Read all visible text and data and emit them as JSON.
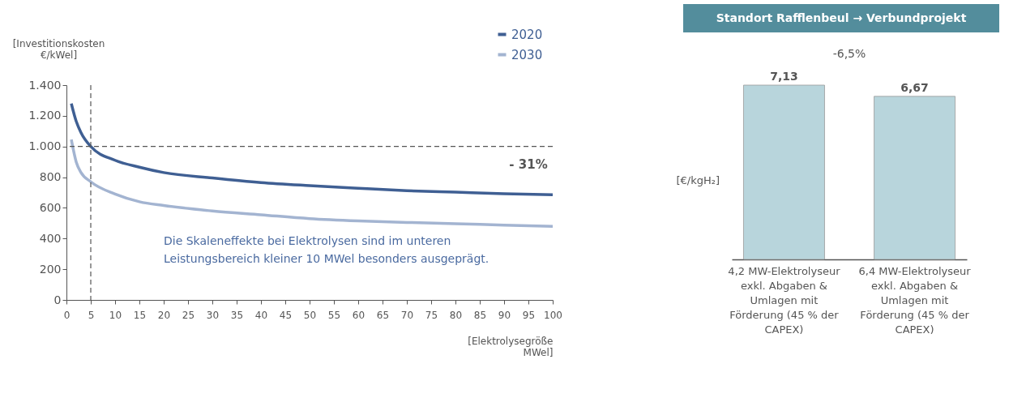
{
  "chart_data": [
    {
      "type": "line",
      "ylabel": "[Investitionskosten €/kWel]",
      "xlabel": "[Elektrolysegröße MWel]",
      "x": [
        1,
        2,
        3,
        5,
        10,
        15,
        20,
        30,
        40,
        50,
        60,
        70,
        80,
        90,
        100
      ],
      "series": [
        {
          "name": "2020",
          "color": "#3f5f93",
          "values": [
            1280,
            1165,
            1090,
            1000,
            910,
            865,
            830,
            795,
            765,
            745,
            728,
            712,
            702,
            692,
            685
          ]
        },
        {
          "name": "2030",
          "color": "#a3b4d1",
          "values": [
            1045,
            900,
            830,
            770,
            690,
            640,
            615,
            580,
            555,
            530,
            515,
            505,
            497,
            488,
            480
          ]
        }
      ],
      "xlim": [
        0,
        100
      ],
      "xticks": [
        0,
        5,
        10,
        15,
        20,
        25,
        30,
        35,
        40,
        45,
        50,
        55,
        60,
        65,
        70,
        75,
        80,
        85,
        90,
        95,
        100
      ],
      "ylim": [
        0,
        1400
      ],
      "yticks": [
        0,
        200,
        400,
        600,
        800,
        {
          "value": 1000,
          "label": "1.000"
        },
        {
          "value": 1200,
          "label": "1.200"
        },
        {
          "value": 1400,
          "label": "1.400"
        }
      ],
      "ref_lines": [
        {
          "axis": "y",
          "value": 1000,
          "line_style": "dashed",
          "color": "#555555"
        },
        {
          "axis": "x",
          "value": 5,
          "line_style": "dashed",
          "color": "#555555"
        }
      ],
      "annotations": [
        "- 31%",
        "Die Skaleneffekte bei Elektrolysen sind im unteren Leistungsbereich kleiner 10 MWel besonders ausgeprägt."
      ],
      "legend": "top right",
      "grid": false,
      "line_style": "solid",
      "marker": "none"
    },
    {
      "type": "bar",
      "title": "Standort Rafflenbeul → Verbundprojekt",
      "ylabel": "[€/kgH₂]",
      "categories": [
        "4,2 MW-Elektrolyseur exkl. Abgaben & Umlagen mit Förderung (45 % der CAPEX)",
        "6,4 MW-Elektrolyseur exkl. Abgaben & Umlagen mit Förderung (45 % der CAPEX)"
      ],
      "values": [
        7.13,
        6.67
      ],
      "value_labels": [
        "7,13",
        "6,67"
      ],
      "color": "#b8d5dc",
      "annotations": [
        "-6,5%"
      ]
    }
  ]
}
